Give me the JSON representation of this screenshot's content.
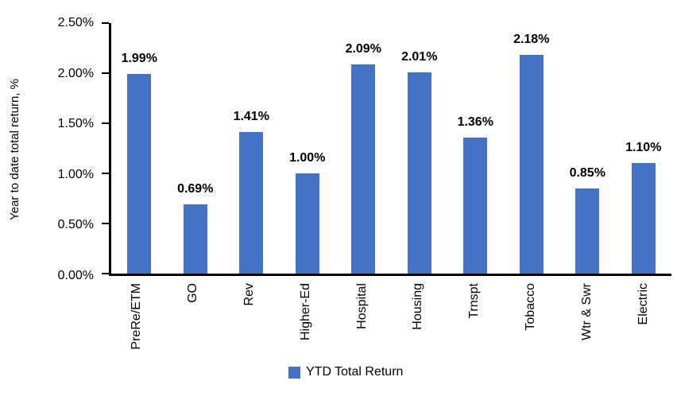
{
  "chart_data": {
    "type": "bar",
    "categories": [
      "PreRe/ETM",
      "GO",
      "Rev",
      "Higher-Ed",
      "Hospital",
      "Housing",
      "Trnspt",
      "Tobacco",
      "Wtr & Swr",
      "Electric"
    ],
    "values": [
      1.99,
      0.69,
      1.41,
      1.0,
      2.09,
      2.01,
      1.36,
      2.18,
      0.85,
      1.1
    ],
    "data_labels": [
      "1.99%",
      "0.69%",
      "1.41%",
      "1.00%",
      "2.09%",
      "2.01%",
      "1.36%",
      "2.18%",
      "0.85%",
      "1.10%"
    ],
    "title": "",
    "xlabel": "",
    "ylabel": "Year to date total return, %",
    "ylim": [
      0,
      2.5
    ],
    "yticks": [
      "0.00%",
      "0.50%",
      "1.00%",
      "1.50%",
      "2.00%",
      "2.50%"
    ],
    "grid": false,
    "legend": {
      "position": "bottom",
      "entries": [
        "YTD Total Return"
      ]
    },
    "colors": {
      "bar": "#4472C4",
      "axis": "#000000",
      "text": "#000000"
    }
  }
}
